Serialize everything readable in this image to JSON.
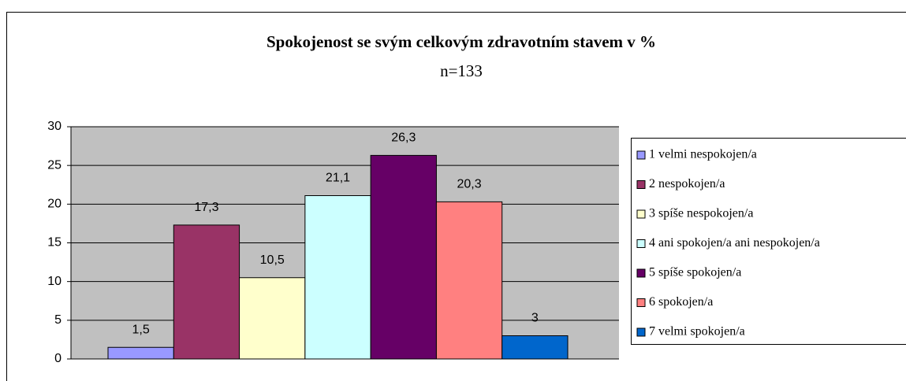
{
  "chart_data": {
    "type": "bar",
    "title": "Spokojenost se svým celkovým zdravotním stavem v %",
    "subtitle": "n=133",
    "series": [
      {
        "name": "1 velmi nespokojen/a",
        "color": "#9999ff",
        "values": [
          1.5
        ],
        "value_labels": [
          "1,5"
        ]
      },
      {
        "name": "2 nespokojen/a",
        "color": "#993366",
        "values": [
          17.3
        ],
        "value_labels": [
          "17,3"
        ]
      },
      {
        "name": "3 spíše nespokojen/a",
        "color": "#ffffcc",
        "values": [
          10.5
        ],
        "value_labels": [
          "10,5"
        ]
      },
      {
        "name": "4 ani spokojen/a ani nespokojen/a",
        "color": "#ccffff",
        "values": [
          21.1
        ],
        "value_labels": [
          "21,1"
        ]
      },
      {
        "name": "5 spíše spokojen/a",
        "color": "#660066",
        "values": [
          26.3
        ],
        "value_labels": [
          "26,3"
        ]
      },
      {
        "name": "6 spokojen/a",
        "color": "#ff8080",
        "values": [
          20.3
        ],
        "value_labels": [
          "20,3"
        ]
      },
      {
        "name": "7 velmi spokojen/a",
        "color": "#0066cc",
        "values": [
          3
        ]
      }
    ],
    "ylim": [
      0,
      30
    ],
    "yticks": [
      0,
      5,
      10,
      15,
      20,
      25,
      30
    ],
    "grid": true,
    "legend": "right"
  }
}
